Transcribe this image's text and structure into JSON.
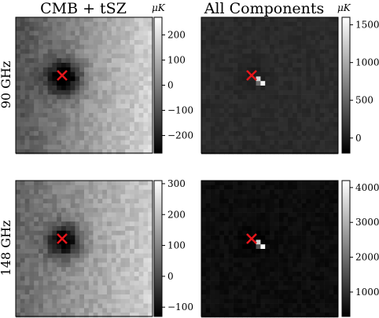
{
  "column_titles": [
    "CMB + tSZ",
    "All Components"
  ],
  "row_labels": [
    "90 GHz",
    "148 GHz"
  ],
  "colorbar_unit": "μK",
  "colors": {
    "marker": "#e5161b",
    "cmap_low": "#000000",
    "cmap_high": "#ffffff"
  },
  "chart_data": [
    {
      "type": "heatmap",
      "title": "CMB + tSZ",
      "row": "90 GHz",
      "colorbar": {
        "label": "μK",
        "range": [
          -270,
          270
        ],
        "ticks": [
          200,
          100,
          0,
          -100,
          -200
        ],
        "tick_labels": [
          "200",
          "100",
          "0",
          "−100",
          "−200"
        ]
      },
      "features": {
        "background_gradient": "left ~ -100 to right ~ +150",
        "decrement_center_approx": -250
      },
      "marker": "red x near decrement center"
    },
    {
      "type": "heatmap",
      "title": "All Components",
      "row": "90 GHz",
      "colorbar": {
        "label": "μK",
        "range": [
          -200,
          1600
        ],
        "ticks": [
          1500,
          1000,
          500,
          0
        ],
        "tick_labels": [
          "1500",
          "1000",
          "500",
          "0"
        ]
      },
      "features": {
        "background_approx": 100,
        "point_source_peak_approx": 1550
      },
      "marker": "red x near point source"
    },
    {
      "type": "heatmap",
      "title": "",
      "row": "148 GHz",
      "colorbar": {
        "label": "",
        "range": [
          -130,
          310
        ],
        "ticks": [
          300,
          200,
          100,
          0,
          -100
        ],
        "tick_labels": [
          "300",
          "200",
          "100",
          "0",
          "−100"
        ]
      },
      "features": {
        "background_gradient": "left ~ 50 to right ~ 200",
        "decrement_center_approx": -120
      },
      "marker": "red x near decrement center"
    },
    {
      "type": "heatmap",
      "title": "",
      "row": "148 GHz",
      "colorbar": {
        "label": "",
        "range": [
          300,
          4200
        ],
        "ticks": [
          4000,
          3000,
          2000,
          1000
        ],
        "tick_labels": [
          "4000",
          "3000",
          "2000",
          "1000"
        ]
      },
      "features": {
        "background_approx": 500,
        "point_source_peak_approx": 4150
      },
      "marker": "red x near point source"
    }
  ]
}
